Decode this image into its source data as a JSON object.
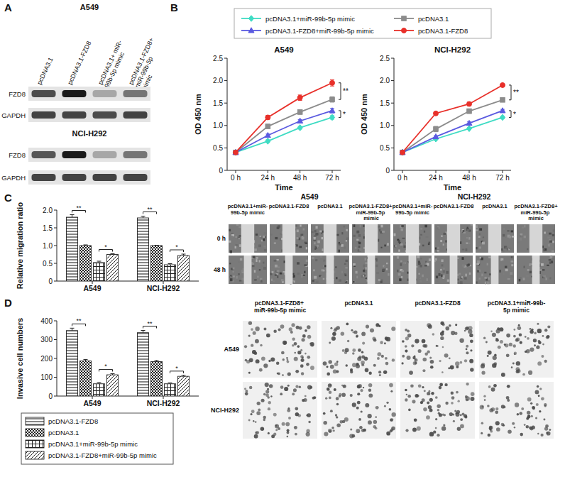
{
  "figure": {
    "panels": [
      "A",
      "B",
      "C",
      "D"
    ],
    "blot": {
      "lanes": [
        "pcDNA3.1",
        "pcDNA3.1-FZD8",
        "pcDNA3.1+ miR-99b-5p mimic",
        "pcDNA3.1-FZD8+ miR-99b-5p mimic"
      ],
      "rows": [
        "FZD8",
        "GAPDH"
      ],
      "cells": [
        {
          "title": "A549",
          "intensity": [
            [
              0.75,
              1,
              0.3,
              0.55
            ],
            [
              0.8,
              0.8,
              0.75,
              0.8
            ]
          ]
        },
        {
          "title": "NCI-H292",
          "intensity": [
            [
              0.7,
              1,
              0.3,
              0.55
            ],
            [
              0.8,
              0.8,
              0.8,
              0.8
            ]
          ]
        }
      ]
    },
    "scratch": {
      "rows": [
        "0 h",
        "48 h"
      ],
      "groups": [
        {
          "title": "A549",
          "columns": [
            "pcDNA3.1+miR-99b-5p mimic",
            "pcDNA3.1-FZD8",
            "pcDNA3.1",
            "pcDNA3.1-FZD8+ miR-99b-5p mimic"
          ]
        },
        {
          "title": "NCI-H292",
          "columns": [
            "pcDNA3.1+miR-99b-5p mimic",
            "pcDNA3.1-FZD8",
            "pcDNA3.1",
            "pcDNA3.1-FZD8+miR-99b-5p mimic"
          ]
        }
      ]
    },
    "transwell": {
      "columns": [
        "pcDNA3.1-FZD8+ miR-99b-5p mimic",
        "pcDNA3.1",
        "pcDNA3.1-FZD8",
        "pcDNA3.1+miR-99b-5p mimic"
      ],
      "rows": [
        "A549",
        "NCI-H292"
      ]
    }
  },
  "chart_data": [
    {
      "type": "line",
      "title": "A549",
      "x_label": "Time",
      "y_label": "OD 450 nm",
      "categories": [
        "0 h",
        "24 h",
        "48 h",
        "72 h"
      ],
      "ylim": [
        0,
        2.5
      ],
      "yticks": [
        0,
        0.5,
        {
          "value": 1,
          "label": "1.0"
        },
        1.5,
        {
          "value": 2,
          "label": "2.0"
        },
        2.5
      ],
      "legend": "top",
      "series": [
        {
          "name": "pcDNA3.1+miR-99b-5p mimic",
          "color": "#3fdcc4",
          "marker": "diamond",
          "values": [
            0.4,
            0.65,
            0.95,
            1.18
          ],
          "errors": [
            0.02,
            0.03,
            0.03,
            0.04
          ]
        },
        {
          "name": "pcDNA3.1",
          "color": "#8c8c8c",
          "marker": "square",
          "values": [
            0.4,
            0.98,
            1.3,
            1.58
          ],
          "errors": [
            0.02,
            0.04,
            0.05,
            0.06
          ]
        },
        {
          "name": "pcDNA3.1-FZD8+miR-99b-5p mimic",
          "color": "#5a5ae0",
          "marker": "triangle",
          "values": [
            0.4,
            0.78,
            1.1,
            1.33
          ],
          "errors": [
            0.02,
            0.03,
            0.03,
            0.05
          ]
        },
        {
          "name": "pcDNA3.1-FZD8",
          "color": "#e8302a",
          "marker": "circle",
          "values": [
            0.4,
            1.18,
            1.62,
            1.95
          ],
          "errors": [
            0.02,
            0.04,
            0.06,
            0.07
          ]
        }
      ],
      "annotations": [
        {
          "text": "**",
          "series": [
            3,
            1
          ]
        },
        {
          "text": "*",
          "series": [
            2,
            0
          ]
        }
      ]
    },
    {
      "type": "line",
      "title": "NCI-H292",
      "x_label": "Time",
      "y_label": "OD 450 nm",
      "categories": [
        "0 h",
        "24 h",
        "48 h",
        "72 h"
      ],
      "ylim": [
        0,
        2.5
      ],
      "yticks": [
        0,
        0.5,
        {
          "value": 1,
          "label": "1.0"
        },
        1.5,
        {
          "value": 2,
          "label": "2.0"
        },
        2.5
      ],
      "series": [
        {
          "color": "#3fdcc4",
          "marker": "diamond",
          "values": [
            0.4,
            0.7,
            0.93,
            1.18
          ],
          "errors": [
            0.02,
            0.02,
            0.02,
            0.03
          ]
        },
        {
          "color": "#8c8c8c",
          "marker": "square",
          "values": [
            0.4,
            0.92,
            1.32,
            1.57
          ],
          "errors": [
            0.02,
            0.06,
            0.05,
            0.04
          ]
        },
        {
          "color": "#5a5ae0",
          "marker": "triangle",
          "values": [
            0.4,
            0.75,
            1.05,
            1.33
          ],
          "errors": [
            0.02,
            0.02,
            0.03,
            0.03
          ]
        },
        {
          "color": "#e8302a",
          "marker": "circle",
          "values": [
            0.4,
            1.27,
            1.48,
            1.9
          ],
          "errors": [
            0.02,
            0.02,
            0.04,
            0.02
          ]
        }
      ],
      "annotations": [
        {
          "text": "**",
          "series": [
            3,
            1
          ]
        },
        {
          "text": "*",
          "series": [
            2,
            0
          ]
        }
      ]
    },
    {
      "type": "bar",
      "y_label": "Relative migration ratio",
      "categories": [
        "A549",
        "NCI-H292"
      ],
      "ylim": [
        0,
        2
      ],
      "yticks": [
        0,
        0.5,
        {
          "value": 1,
          "label": "1.0"
        },
        1.5,
        {
          "value": 2,
          "label": "2.0"
        }
      ],
      "series": [
        {
          "values": [
            1.8,
            1.78
          ],
          "errors": [
            0.07,
            0.05
          ]
        },
        {
          "values": [
            1.0,
            1.0
          ],
          "errors": [
            0.02,
            0.01
          ]
        },
        {
          "values": [
            0.52,
            0.46
          ],
          "errors": [
            0.04,
            0.03
          ]
        },
        {
          "values": [
            0.75,
            0.72
          ],
          "errors": [
            0.02,
            0.04
          ]
        }
      ],
      "annotations": [
        {
          "text": "**",
          "series": [
            0,
            1
          ]
        },
        {
          "text": "*",
          "series": [
            2,
            3
          ]
        }
      ]
    },
    {
      "type": "bar",
      "y_label": "Invasive cell numbers",
      "categories": [
        "A549",
        "NCI-H292"
      ],
      "ylim": [
        0,
        400
      ],
      "yticks": [
        0,
        100,
        200,
        300,
        400
      ],
      "legend": "bottom",
      "series": [
        {
          "name": "pcDNA3.1-FZD8",
          "values": [
            348,
            337
          ],
          "errors": [
            13,
            12
          ]
        },
        {
          "name": "pcDNA3.1",
          "values": [
            187,
            183
          ],
          "errors": [
            7,
            6
          ]
        },
        {
          "name": "pcDNA3.1+miR-99b-5p mimic",
          "values": [
            65,
            65
          ],
          "errors": [
            7,
            5
          ]
        },
        {
          "name": "pcDNA3.1-FZD8+miR-99b-5p mimic",
          "values": [
            113,
            105
          ],
          "errors": [
            6,
            5
          ]
        }
      ],
      "annotations": [
        {
          "text": "**",
          "series": [
            0,
            1
          ]
        },
        {
          "text": "*",
          "series": [
            2,
            3
          ]
        }
      ]
    }
  ]
}
